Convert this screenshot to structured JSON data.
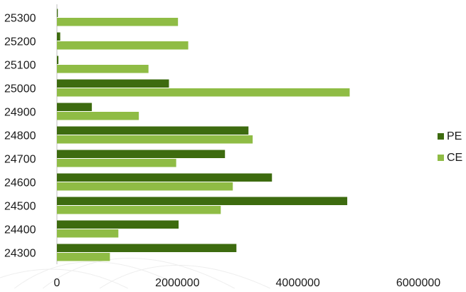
{
  "chart_data": {
    "type": "bar",
    "orientation": "horizontal",
    "categories": [
      "24300",
      "24400",
      "24500",
      "24600",
      "24700",
      "24800",
      "24900",
      "25000",
      "25100",
      "25200",
      "25300"
    ],
    "series": [
      {
        "name": "PE",
        "color": "#3d6b0f",
        "values": [
          2980000,
          2020000,
          4820000,
          3570000,
          2790000,
          3180000,
          580000,
          1860000,
          25000,
          55000,
          15000
        ]
      },
      {
        "name": "CE",
        "color": "#8fbc45",
        "values": [
          880000,
          1020000,
          2720000,
          2920000,
          1980000,
          3250000,
          1360000,
          4860000,
          1520000,
          2180000,
          2010000
        ]
      }
    ],
    "x_ticks": [
      "0",
      "2000000",
      "4000000",
      "6000000"
    ],
    "xlim": [
      0,
      6000000
    ],
    "legend_position": "right",
    "grid": false,
    "title": "",
    "xlabel": "",
    "ylabel": ""
  }
}
